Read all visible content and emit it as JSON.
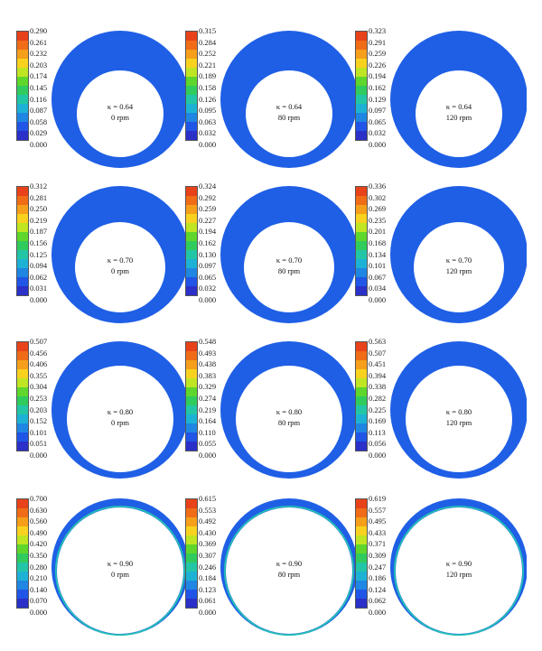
{
  "colorbar_colors": [
    "#e8421a",
    "#f06c17",
    "#f59f1b",
    "#f8d21f",
    "#bfe523",
    "#5fd62b",
    "#2fcb5d",
    "#22c6a6",
    "#1db2d5",
    "#1f86e3",
    "#2055e7",
    "#2a30c8"
  ],
  "annulus_color": "#1f5fe6",
  "panels": [
    {
      "kappa": "κ = 0.64",
      "rpm": "0 rpm",
      "ticks": [
        "0.290",
        "0.261",
        "0.232",
        "0.203",
        "0.174",
        "0.145",
        "0.116",
        "0.087",
        "0.058",
        "0.029",
        "0.000"
      ]
    },
    {
      "kappa": "κ = 0.64",
      "rpm": "80 rpm",
      "ticks": [
        "0.315",
        "0.284",
        "0.252",
        "0.221",
        "0.189",
        "0.158",
        "0.126",
        "0.095",
        "0.063",
        "0.032",
        "0.000"
      ]
    },
    {
      "kappa": "κ = 0.64",
      "rpm": "120 rpm",
      "ticks": [
        "0.323",
        "0.291",
        "0.259",
        "0.226",
        "0.194",
        "0.162",
        "0.129",
        "0.097",
        "0.065",
        "0.032",
        "0.000"
      ]
    },
    {
      "kappa": "κ = 0.70",
      "rpm": "0 rpm",
      "ticks": [
        "0.312",
        "0.281",
        "0.250",
        "0.219",
        "0.187",
        "0.156",
        "0.125",
        "0.094",
        "0.062",
        "0.031",
        "0.000"
      ]
    },
    {
      "kappa": "κ = 0.70",
      "rpm": "80 rpm",
      "ticks": [
        "0.324",
        "0.292",
        "0.259",
        "0.227",
        "0.194",
        "0.162",
        "0.130",
        "0.097",
        "0.065",
        "0.032",
        "0.000"
      ]
    },
    {
      "kappa": "κ = 0.70",
      "rpm": "120 rpm",
      "ticks": [
        "0.336",
        "0.302",
        "0.269",
        "0.235",
        "0.201",
        "0.168",
        "0.134",
        "0.101",
        "0.067",
        "0.034",
        "0.000"
      ]
    },
    {
      "kappa": "κ = 0.80",
      "rpm": "0 rpm",
      "ticks": [
        "0.507",
        "0.456",
        "0.406",
        "0.355",
        "0.304",
        "0.253",
        "0.203",
        "0.152",
        "0.101",
        "0.051",
        "0.000"
      ]
    },
    {
      "kappa": "κ = 0.80",
      "rpm": "80 rpm",
      "ticks": [
        "0.548",
        "0.493",
        "0.438",
        "0.383",
        "0.329",
        "0.274",
        "0.219",
        "0.164",
        "0.110",
        "0.055",
        "0.000"
      ]
    },
    {
      "kappa": "κ = 0.80",
      "rpm": "120 rpm",
      "ticks": [
        "0.563",
        "0.507",
        "0.451",
        "0.394",
        "0.338",
        "0.282",
        "0.225",
        "0.169",
        "0.113",
        "0.056",
        "0.000"
      ]
    },
    {
      "kappa": "κ = 0.90",
      "rpm": "0 rpm",
      "ticks": [
        "0.700",
        "0.630",
        "0.560",
        "0.490",
        "0.420",
        "0.350",
        "0.280",
        "0.210",
        "0.140",
        "0.070",
        "0.000"
      ]
    },
    {
      "kappa": "κ = 0.90",
      "rpm": "80 rpm",
      "ticks": [
        "0.615",
        "0.553",
        "0.492",
        "0.430",
        "0.369",
        "0.307",
        "0.246",
        "0.184",
        "0.123",
        "0.061",
        "0.000"
      ]
    },
    {
      "kappa": "κ = 0.90",
      "rpm": "120 rpm",
      "ticks": [
        "0.619",
        "0.557",
        "0.495",
        "0.433",
        "0.371",
        "0.309",
        "0.247",
        "0.186",
        "0.124",
        "0.062",
        "0.000"
      ]
    }
  ]
}
